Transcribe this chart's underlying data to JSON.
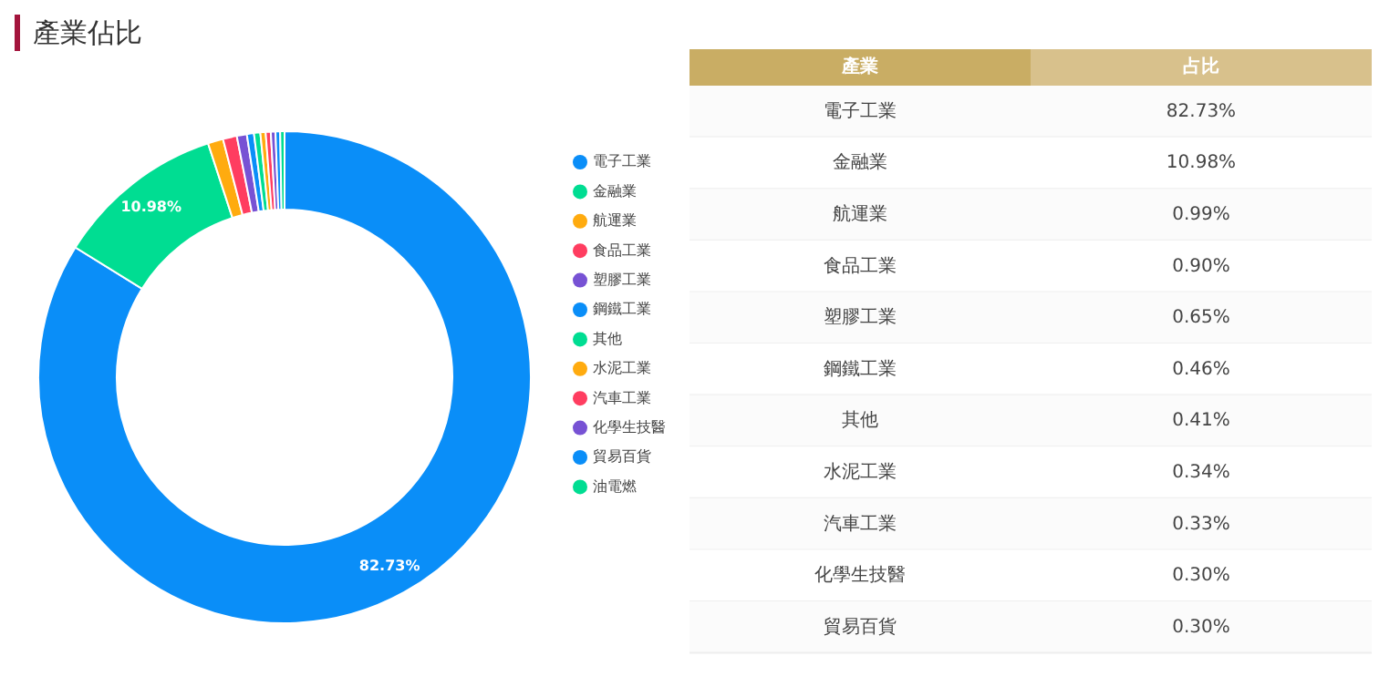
{
  "chart_data": [
    {
      "type": "donut",
      "title": "產業佔比",
      "categories": [
        "電子工業",
        "金融業",
        "航運業",
        "食品工業",
        "塑膠工業",
        "鋼鐵工業",
        "其他",
        "水泥工業",
        "汽車工業",
        "化學生技醫",
        "貿易百貨",
        "油電燃"
      ],
      "values": [
        82.73,
        10.98,
        0.99,
        0.9,
        0.65,
        0.46,
        0.41,
        0.34,
        0.33,
        0.3,
        0.3,
        0.28
      ],
      "colors": [
        "#0a8ef8",
        "#00dd92",
        "#ffab0f",
        "#ff3d60",
        "#7752d4",
        "#0a8ef8",
        "#00dd92",
        "#ffab0f",
        "#ff3d60",
        "#7752d4",
        "#0a8ef8",
        "#00dd92"
      ],
      "value_labels": [
        "82.73%",
        "10.98%",
        null,
        null,
        null,
        null,
        null,
        null,
        null,
        null,
        null,
        null
      ],
      "legend": "right"
    },
    {
      "type": "other",
      "annotations": [
        "產業",
        "占比"
      ],
      "categories": [
        "電子工業",
        "金融業",
        "航運業",
        "食品工業",
        "塑膠工業",
        "鋼鐵工業",
        "其他",
        "水泥工業",
        "汽車工業",
        "化學生技醫",
        "貿易百貨"
      ],
      "values": [
        82.73,
        10.98,
        0.99,
        0.9,
        0.65,
        0.46,
        0.41,
        0.34,
        0.33,
        0.3,
        0.3
      ],
      "value_labels": [
        "82.73%",
        "10.98%",
        "0.99%",
        "0.90%",
        "0.65%",
        "0.46%",
        "0.41%",
        "0.34%",
        "0.33%",
        "0.30%",
        "0.30%"
      ]
    }
  ]
}
